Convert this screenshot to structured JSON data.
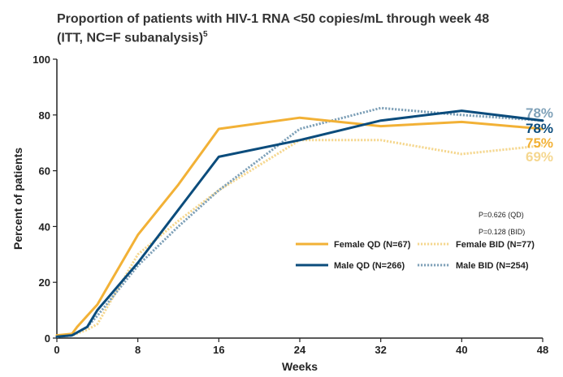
{
  "title_line1": "Proportion of patients with HIV-1 RNA <50 copies/mL through week 48",
  "title_line2": "(ITT, NC=F subanalysis)",
  "title_ref": "5",
  "chart_data": {
    "type": "line",
    "xlabel": "Weeks",
    "ylabel": "Percent of patients",
    "xlim": [
      0,
      48
    ],
    "ylim": [
      0,
      100
    ],
    "x_ticks": [
      "0",
      "8",
      "16",
      "24",
      "32",
      "40",
      "48"
    ],
    "y_ticks": [
      "0",
      "20",
      "40",
      "60",
      "80",
      "100"
    ],
    "legend_position": "lower-right",
    "series": [
      {
        "name": "Female QD (N=67)",
        "color": "#F2B136",
        "style": "solid",
        "x": [
          0,
          1.5,
          2,
          4,
          8,
          12,
          16,
          24,
          32,
          40,
          48
        ],
        "y": [
          1,
          1.5,
          4,
          12,
          37,
          55,
          75,
          79,
          76,
          77.5,
          75
        ],
        "end_label": "75%"
      },
      {
        "name": "Male QD (N=266)",
        "color": "#0B4C7C",
        "style": "solid",
        "x": [
          0,
          1.5,
          3,
          4,
          8,
          12,
          16,
          24,
          32,
          40,
          48
        ],
        "y": [
          0.5,
          1,
          4,
          10,
          27,
          46,
          65,
          71,
          78,
          81.5,
          78
        ],
        "end_label": "78%"
      },
      {
        "name": "Female BID (N=77)",
        "color": "#F5D78F",
        "style": "dotted",
        "x": [
          0,
          1.5,
          3,
          4,
          8,
          12,
          16,
          24,
          32,
          40,
          48
        ],
        "y": [
          0.5,
          1,
          3,
          5,
          30,
          42,
          53,
          71,
          71,
          66,
          69
        ],
        "end_label": "69%"
      },
      {
        "name": "Male BID (N=254)",
        "color": "#7FA1B8",
        "style": "dotted",
        "x": [
          0,
          1.5,
          3,
          4,
          8,
          12,
          16,
          24,
          32,
          40,
          48
        ],
        "y": [
          0.5,
          1,
          4,
          8,
          26,
          40,
          53,
          75,
          82.5,
          80,
          78
        ],
        "end_label": "78%"
      }
    ],
    "annotations": [
      "P=0.626 (QD)",
      "P=0.128 (BID)"
    ]
  }
}
